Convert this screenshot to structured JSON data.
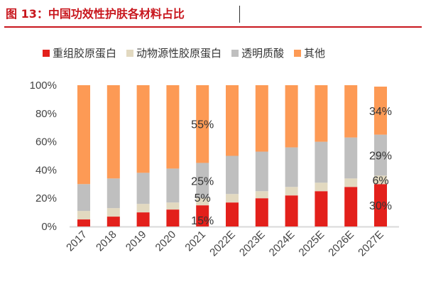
{
  "title": "图 13：中国功效性护肤各材料占比",
  "chart_data": {
    "type": "bar",
    "stacked": true,
    "categories": [
      "2017",
      "2018",
      "2019",
      "2020",
      "2021",
      "2022E",
      "2023E",
      "2024E",
      "2025E",
      "2026E",
      "2027E"
    ],
    "series": [
      {
        "name": "重组胶原蛋白",
        "color": "#e3201b",
        "values": [
          5,
          7,
          10,
          12,
          15,
          17,
          20,
          22,
          25,
          28,
          30
        ]
      },
      {
        "name": "动物源性胶原蛋白",
        "color": "#e2d9c0",
        "values": [
          6,
          6,
          6,
          5,
          5,
          6,
          5,
          6,
          6,
          6,
          6
        ]
      },
      {
        "name": "透明质酸",
        "color": "#bfbfbf",
        "values": [
          19,
          21,
          22,
          24,
          25,
          27,
          28,
          28,
          29,
          29,
          29
        ]
      },
      {
        "name": "其他",
        "color": "#fd9a55",
        "values": [
          70,
          66,
          62,
          59,
          55,
          50,
          47,
          44,
          40,
          37,
          34
        ]
      }
    ],
    "data_labels": [
      {
        "category": "2021",
        "labels": [
          "15%",
          "5%",
          "25%",
          "55%"
        ]
      },
      {
        "category": "2027E",
        "labels": [
          "30%",
          "6%",
          "29%",
          "34%"
        ]
      }
    ],
    "yticks": [
      "0%",
      "20%",
      "40%",
      "60%",
      "80%",
      "100%"
    ],
    "ylim": [
      0,
      100
    ],
    "grid": false,
    "legend": "top"
  }
}
